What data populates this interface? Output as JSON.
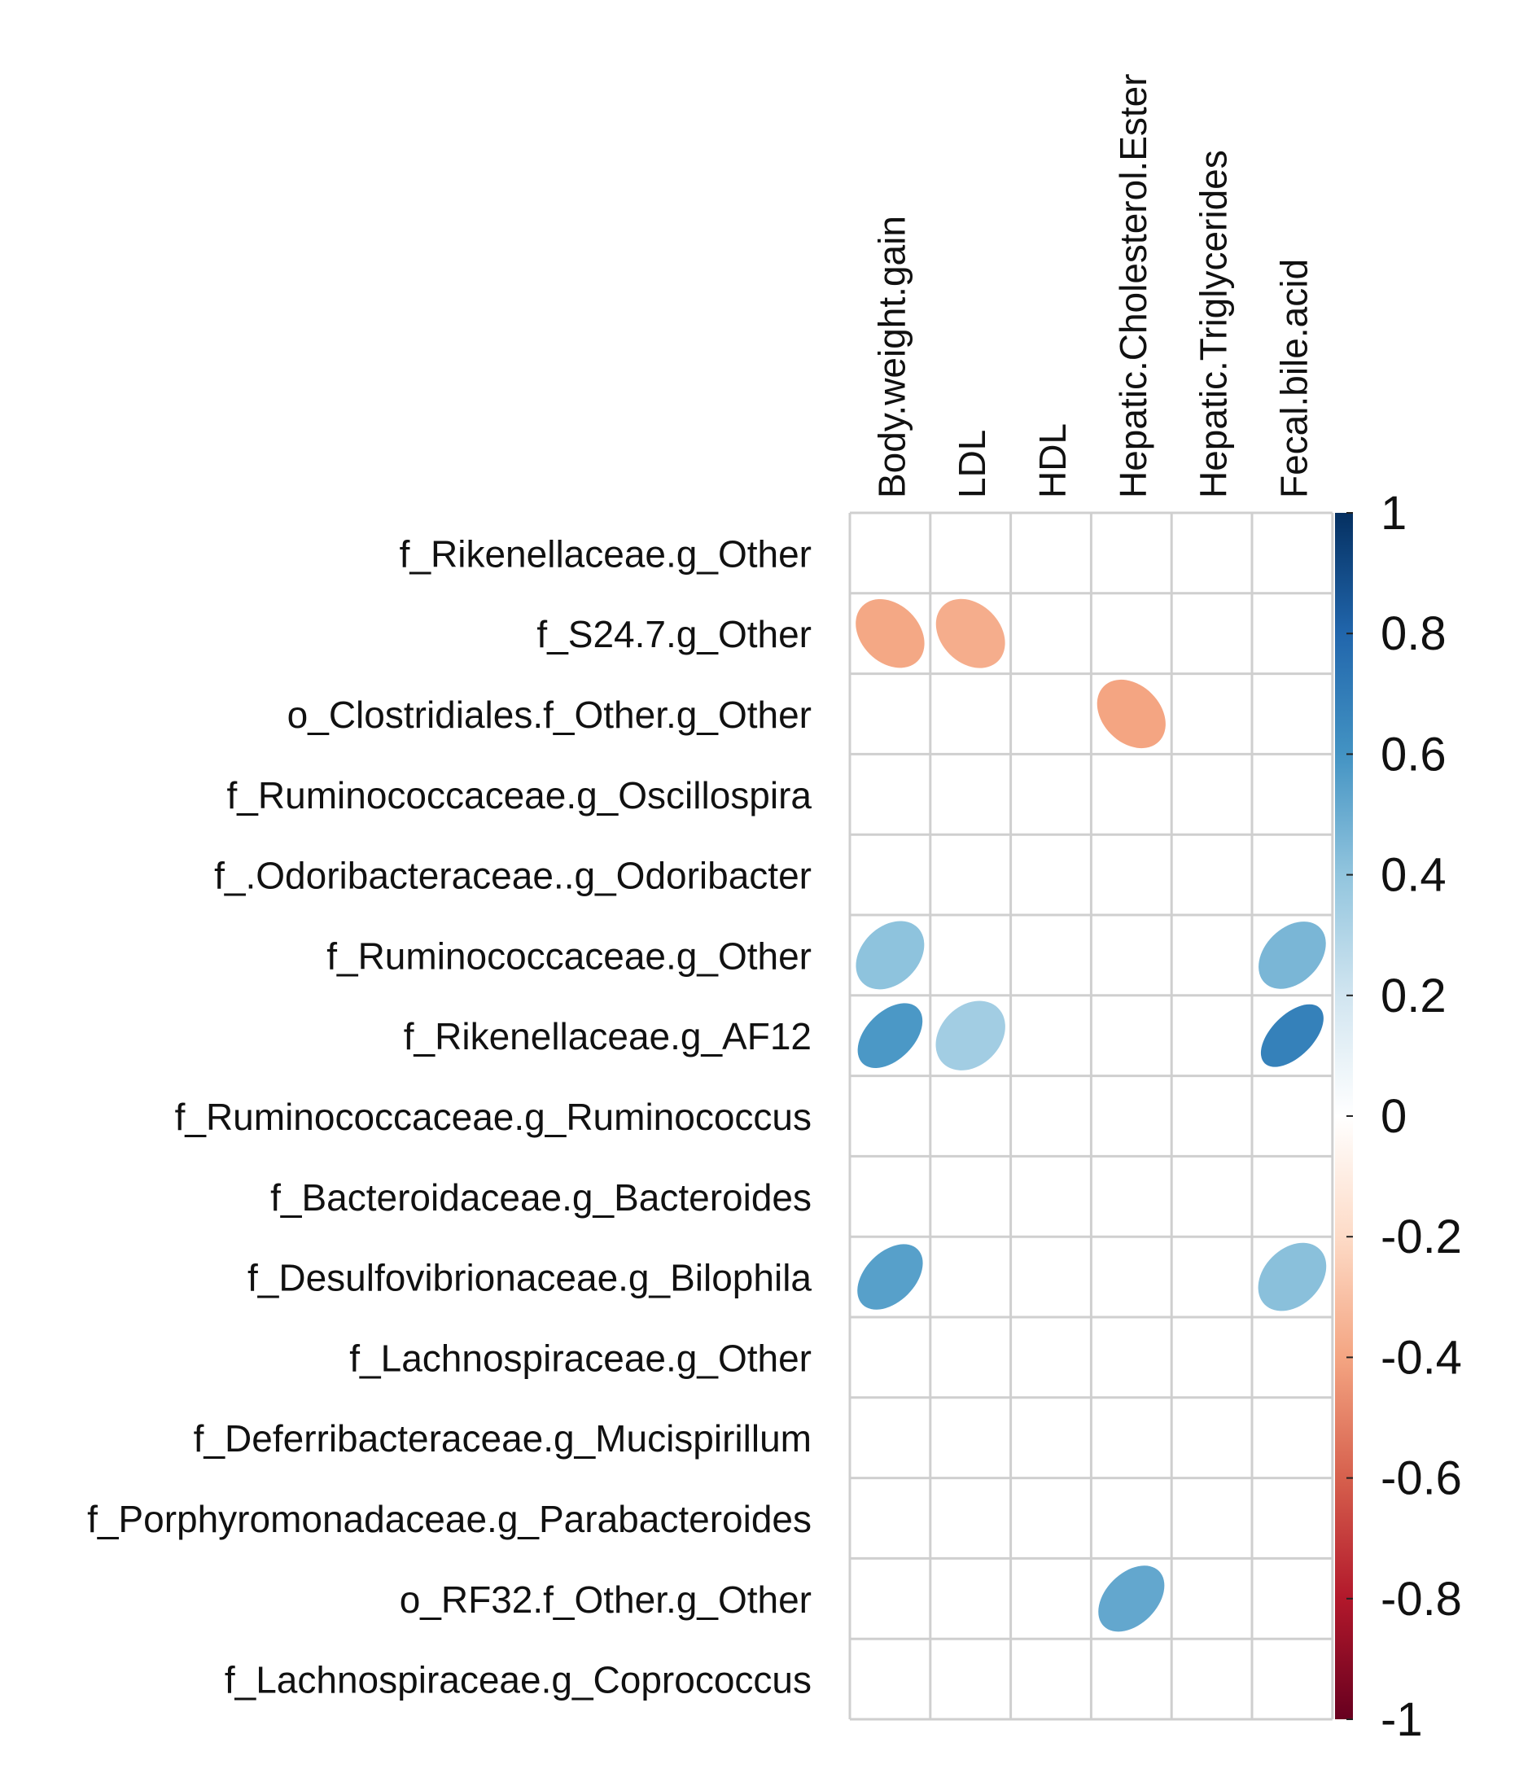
{
  "chart_data": {
    "type": "heatmap",
    "subtype": "correlation-ellipse",
    "columns": [
      "Body.weight.gain",
      "LDL",
      "HDL",
      "Hepatic.Cholesterol.Ester",
      "Hepatic.Triglycerides",
      "Fecal.bile.acid"
    ],
    "rows": [
      "f_Rikenellaceae.g_Other",
      "f_S24.7.g_Other",
      "o_Clostridiales.f_Other.g_Other",
      "f_Ruminococcaceae.g_Oscillospira",
      "f_.Odoribacteraceae..g_Odoribacter",
      "f_Ruminococcaceae.g_Other",
      "f_Rikenellaceae.g_AF12",
      "f_Ruminococcaceae.g_Ruminococcus",
      "f_Bacteroidaceae.g_Bacteroides",
      "f_Desulfovibrionaceae.g_Bilophila",
      "f_Lachnospiraceae.g_Other",
      "f_Deferribacteraceae.g_Mucispirillum",
      "f_Porphyromonadaceae.g_Parabacteroides",
      "o_RF32.f_Other.g_Other",
      "f_Lachnospiraceae.g_Coprococcus"
    ],
    "values": [
      [
        null,
        null,
        null,
        null,
        null,
        null
      ],
      [
        -0.39,
        -0.37,
        null,
        null,
        null,
        null
      ],
      [
        null,
        null,
        null,
        -0.4,
        null,
        null
      ],
      [
        null,
        null,
        null,
        null,
        null,
        null
      ],
      [
        null,
        null,
        null,
        null,
        null,
        null
      ],
      [
        0.41,
        null,
        null,
        null,
        null,
        0.46
      ],
      [
        0.58,
        0.35,
        null,
        null,
        null,
        0.68
      ],
      [
        null,
        null,
        null,
        null,
        null,
        null
      ],
      [
        null,
        null,
        null,
        null,
        null,
        null
      ],
      [
        0.55,
        null,
        null,
        null,
        null,
        0.42
      ],
      [
        null,
        null,
        null,
        null,
        null,
        null
      ],
      [
        null,
        null,
        null,
        null,
        null,
        null
      ],
      [
        null,
        null,
        null,
        null,
        null,
        null
      ],
      [
        null,
        null,
        null,
        0.52,
        null,
        null
      ],
      [
        null,
        null,
        null,
        null,
        null,
        null
      ]
    ],
    "colorbar": {
      "range": [
        -1,
        1
      ],
      "ticks": [
        1,
        0.8,
        0.6,
        0.4,
        0.2,
        0,
        -0.2,
        -0.4,
        -0.6,
        -0.8,
        -1
      ],
      "tick_labels": [
        "1",
        "0.8",
        "0.6",
        "0.4",
        "0.2",
        "0",
        "-0.2",
        "-0.4",
        "-0.6",
        "-0.8",
        "-1"
      ],
      "colors": [
        "#67001F",
        "#B2182B",
        "#D6604D",
        "#F4A582",
        "#FDDBC7",
        "#FFFFFF",
        "#D1E5F0",
        "#92C5DE",
        "#4393C3",
        "#2166AC",
        "#053061"
      ]
    },
    "grid": true
  }
}
